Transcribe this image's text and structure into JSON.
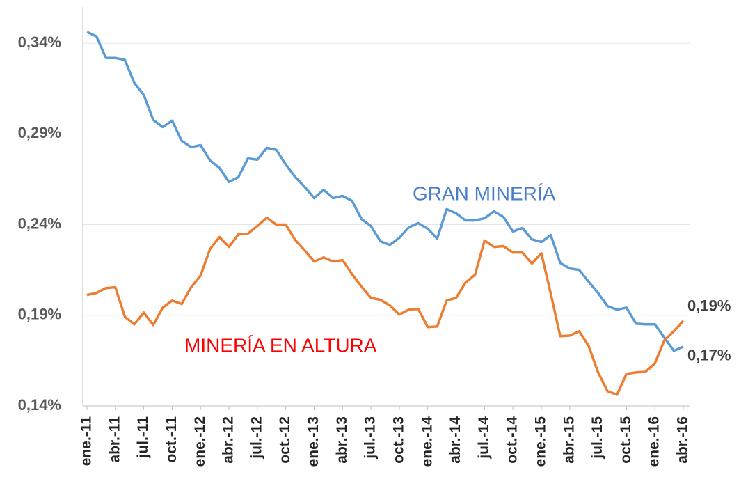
{
  "chart_data": {
    "type": "line",
    "categories": [
      "ene.-11",
      null,
      null,
      "abr.-11",
      null,
      null,
      "jul.-11",
      null,
      null,
      "oct.-11",
      null,
      null,
      "ene.-12",
      null,
      null,
      "abr.-12",
      null,
      null,
      "jul.-12",
      null,
      null,
      "oct.-12",
      null,
      null,
      "ene.-13",
      null,
      null,
      "abr.-13",
      null,
      null,
      "jul.-13",
      null,
      null,
      "oct.-13",
      null,
      null,
      "ene.-14",
      null,
      null,
      "abr.-14",
      null,
      null,
      "jul.-14",
      null,
      null,
      "oct.-14",
      null,
      null,
      "ene.-15",
      null,
      null,
      "abr.-15",
      null,
      null,
      "jul.-15",
      null,
      null,
      "oct.-15",
      null,
      null,
      "ene.-16",
      null,
      null,
      "abr.-16"
    ],
    "series": [
      {
        "name": "GRAN MINERÍA",
        "color": "#5b9bd5",
        "label_color": "#4a7ec8",
        "values": [
          0.3462,
          0.3438,
          0.3319,
          0.3319,
          0.3308,
          0.3181,
          0.3115,
          0.2977,
          0.2938,
          0.2973,
          0.2862,
          0.2827,
          0.2838,
          0.2754,
          0.2712,
          0.2635,
          0.2662,
          0.2765,
          0.2758,
          0.2823,
          0.2812,
          0.2731,
          0.2662,
          0.2608,
          0.2546,
          0.2592,
          0.2546,
          0.2558,
          0.2531,
          0.2431,
          0.2392,
          0.2308,
          0.2288,
          0.2327,
          0.2385,
          0.2408,
          0.2377,
          0.2323,
          0.2485,
          0.2462,
          0.2423,
          0.2423,
          0.2435,
          0.2473,
          0.2442,
          0.2362,
          0.2381,
          0.2319,
          0.2304,
          0.2342,
          0.2188,
          0.2158,
          0.215,
          0.2085,
          0.2023,
          0.195,
          0.1931,
          0.1942,
          0.1854,
          0.185,
          0.185,
          0.1777,
          0.1704,
          0.1727
        ],
        "value_labels": [
          null,
          null,
          null,
          null,
          null,
          null,
          null,
          null,
          null,
          null,
          null,
          null,
          null,
          null,
          null,
          null,
          null,
          null,
          null,
          null,
          null,
          null,
          null,
          null,
          null,
          null,
          null,
          null,
          null,
          null,
          null,
          null,
          null,
          null,
          null,
          null,
          null,
          null,
          null,
          null,
          null,
          null,
          null,
          null,
          null,
          null,
          null,
          null,
          null,
          null,
          null,
          null,
          null,
          null,
          null,
          null,
          null,
          null,
          null,
          null,
          null,
          null,
          null,
          "0,17%"
        ]
      },
      {
        "name": "MINERÍA EN ALTURA",
        "color": "#ed7d31",
        "label_color": "#ff0000",
        "values": [
          0.2012,
          0.2023,
          0.205,
          0.2054,
          0.1892,
          0.185,
          0.1915,
          0.1846,
          0.1942,
          0.1981,
          0.1962,
          0.2054,
          0.2119,
          0.2265,
          0.2331,
          0.2277,
          0.2346,
          0.235,
          0.2392,
          0.2438,
          0.24,
          0.24,
          0.2315,
          0.2258,
          0.2196,
          0.2219,
          0.2196,
          0.2204,
          0.2127,
          0.2058,
          0.1996,
          0.1985,
          0.1954,
          0.1904,
          0.1931,
          0.1935,
          0.1835,
          0.1838,
          0.1981,
          0.1996,
          0.2081,
          0.2123,
          0.2312,
          0.2277,
          0.2281,
          0.2246,
          0.2246,
          0.2185,
          0.2242,
          0.2019,
          0.1785,
          0.1788,
          0.1812,
          0.1731,
          0.1585,
          0.1481,
          0.1462,
          0.1577,
          0.1585,
          0.1588,
          0.1635,
          0.1762,
          0.1812,
          0.1869
        ],
        "value_labels": [
          null,
          null,
          null,
          null,
          null,
          null,
          null,
          null,
          null,
          null,
          null,
          null,
          null,
          null,
          null,
          null,
          null,
          null,
          null,
          null,
          null,
          null,
          null,
          null,
          null,
          null,
          null,
          null,
          null,
          null,
          null,
          null,
          null,
          null,
          null,
          null,
          null,
          null,
          null,
          null,
          null,
          null,
          null,
          null,
          null,
          null,
          null,
          null,
          null,
          null,
          null,
          null,
          null,
          null,
          null,
          null,
          null,
          null,
          null,
          null,
          null,
          null,
          null,
          "0,19%"
        ]
      }
    ],
    "ylim": [
      0.14,
      0.36
    ],
    "yticks": [
      {
        "value": 0.14,
        "label": "0,14%"
      },
      {
        "value": 0.19,
        "label": "0,19%"
      },
      {
        "value": 0.24,
        "label": "0,24%"
      },
      {
        "value": 0.29,
        "label": "0,29%"
      },
      {
        "value": 0.34,
        "label": "0,34%"
      }
    ],
    "grid": true
  }
}
